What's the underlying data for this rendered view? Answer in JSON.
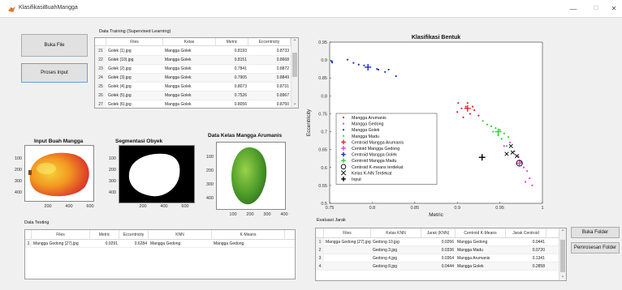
{
  "window": {
    "title": "KlasifikasiBuahMangga",
    "minimize": "—",
    "maximize": "☐",
    "close": "✕"
  },
  "buttons": {
    "buka_file": "Buka File",
    "proses_input": "Proses Input",
    "buka_folder": "Buka Folder",
    "pemrosesan_folder": "Pemrosesan Folder"
  },
  "training": {
    "label": "Data Training (Supervised Learning)",
    "headers": [
      "",
      "Files",
      "Kelas",
      "Metric",
      "Eccentricity"
    ],
    "rows": [
      [
        "21",
        "Golek  (1).jpg",
        "Mangga Golek",
        "0.8193",
        "0.8733"
      ],
      [
        "22",
        "Golek  (10).jpg",
        "Mangga Golek",
        "0.8151",
        "0.8668"
      ],
      [
        "23",
        "Golek  (2).jpg",
        "Mangga Golek",
        "0.7841",
        "0.8872"
      ],
      [
        "24",
        "Golek  (3).jpg",
        "Mangga Golek",
        "0.7905",
        "0.8849"
      ],
      [
        "25",
        "Golek  (4).jpg",
        "Mangga Golek",
        "0.8073",
        "0.8731"
      ],
      [
        "26",
        "Golek  (5).jpg",
        "Mangga Golek",
        "0.7526",
        "0.8967"
      ],
      [
        "27",
        "Golek  (6).jpg",
        "Mangga Golek",
        "0.8056",
        "0.8750"
      ]
    ]
  },
  "images": {
    "input_title": "Input Buah Mangga",
    "seg_title": "Segmentasi Obyek",
    "class_title": "Data Kelas Mangga Arumanis",
    "input_yticks": [
      "100",
      "200",
      "300",
      "400"
    ],
    "input_xticks": [
      "200",
      "400",
      "600"
    ],
    "seg_yticks": [
      "100",
      "200",
      "300",
      "400"
    ],
    "seg_xticks": [
      "200",
      "400",
      "600"
    ],
    "class_yticks": [
      "100",
      "200",
      "300",
      "400"
    ],
    "class_xticks": [
      "100",
      "200",
      "300",
      "400"
    ]
  },
  "testing": {
    "label": "Data Testing",
    "headers": [
      "",
      "Files",
      "Metric",
      "Eccentricity",
      "KNN",
      "K-Means"
    ],
    "rows": [
      [
        "1",
        "Mangga Gedong (27).jpg",
        "0.9291",
        "0.6284",
        "Mangga Gedong",
        "Mangga Gedong"
      ]
    ]
  },
  "evaluasi": {
    "label": "Evaluasi Jarak",
    "headers": [
      "",
      "Files",
      "Kelas KNN",
      "Jarak (KNN)",
      "Centroid K-Means",
      "Jarak Centroid"
    ],
    "rows": [
      [
        "1",
        "Mangga Gedong (27).jpg",
        "Gedong 10.jpg",
        "0.0266",
        "Mangga Gedong",
        "0.0441"
      ],
      [
        "2",
        "",
        "Gedong 3.jpg",
        "0.0336",
        "Mangga Madu",
        "0.0720"
      ],
      [
        "3",
        "",
        "Gedong 4.jpg",
        "0.0364",
        "Mangga Arumanis",
        "0.1341"
      ],
      [
        "4",
        "",
        "Gedong 8.jpg",
        "0.0444",
        "Mangga Golek",
        "0.2858"
      ]
    ]
  },
  "chart_data": {
    "type": "scatter",
    "title": "Klasifikasi Bentuk",
    "xlabel": "Metric",
    "ylabel": "Eccentricity",
    "xlim": [
      0.75,
      1.0
    ],
    "ylim": [
      0.5,
      0.95
    ],
    "xticks": [
      "0.75",
      "0.8",
      "0.85",
      "0.9",
      "0.95",
      "1"
    ],
    "yticks": [
      "0.5",
      "0.55",
      "0.6",
      "0.65",
      "0.7",
      "0.75",
      "0.8",
      "0.85",
      "0.9",
      "0.95"
    ],
    "legend_position": "left",
    "series": [
      {
        "name": "Mangga Arumanis",
        "color": "#e8232a",
        "marker": "dot",
        "points": [
          [
            0.901,
            0.78
          ],
          [
            0.905,
            0.765
          ],
          [
            0.91,
            0.77
          ],
          [
            0.915,
            0.75
          ],
          [
            0.92,
            0.76
          ],
          [
            0.925,
            0.745
          ],
          [
            0.9,
            0.755
          ],
          [
            0.912,
            0.78
          ],
          [
            0.918,
            0.77
          ],
          [
            0.907,
            0.74
          ]
        ]
      },
      {
        "name": "Mangga Gedong",
        "color": "#e83ee0",
        "marker": "dot",
        "points": [
          [
            0.955,
            0.66
          ],
          [
            0.962,
            0.67
          ],
          [
            0.967,
            0.645
          ],
          [
            0.972,
            0.63
          ],
          [
            0.975,
            0.615
          ],
          [
            0.978,
            0.6
          ],
          [
            0.982,
            0.59
          ],
          [
            0.985,
            0.57
          ],
          [
            0.98,
            0.56
          ],
          [
            0.988,
            0.55
          ]
        ]
      },
      {
        "name": "Mangga Golek",
        "color": "#1a2ad6",
        "marker": "dot",
        "points": [
          [
            0.752,
            0.897
          ],
          [
            0.753,
            0.893
          ],
          [
            0.7526,
            0.8967
          ],
          [
            0.7841,
            0.8872
          ],
          [
            0.7905,
            0.8849
          ],
          [
            0.8073,
            0.8731
          ],
          [
            0.8056,
            0.875
          ],
          [
            0.8151,
            0.8668
          ],
          [
            0.8193,
            0.8733
          ],
          [
            0.828,
            0.855
          ],
          [
            0.771,
            0.901
          ],
          [
            0.778,
            0.892
          ]
        ]
      },
      {
        "name": "Mangga Madu",
        "color": "#2fd12f",
        "marker": "dot",
        "points": [
          [
            0.93,
            0.73
          ],
          [
            0.935,
            0.72
          ],
          [
            0.94,
            0.715
          ],
          [
            0.945,
            0.71
          ],
          [
            0.95,
            0.705
          ],
          [
            0.948,
            0.69
          ],
          [
            0.955,
            0.695
          ],
          [
            0.96,
            0.685
          ],
          [
            0.942,
            0.7
          ],
          [
            0.952,
            0.68
          ],
          [
            0.958,
            0.66
          ]
        ]
      },
      {
        "name": "Centroid Mangga Arumanis",
        "color": "#e8232a",
        "marker": "plus",
        "points": [
          [
            0.912,
            0.765
          ]
        ]
      },
      {
        "name": "Centoid Mangga Gedong",
        "color": "#e83ee0",
        "marker": "plus",
        "points": [
          [
            0.973,
            0.612
          ]
        ]
      },
      {
        "name": "Centroid Mangga Golek",
        "color": "#1a2ad6",
        "marker": "plus",
        "points": [
          [
            0.795,
            0.88
          ]
        ]
      },
      {
        "name": "Centroid Mangga Madu",
        "color": "#2fd12f",
        "marker": "plus",
        "points": [
          [
            0.948,
            0.7
          ]
        ]
      },
      {
        "name": "Centroid K-means terdekat",
        "color": "#000000",
        "marker": "circle",
        "points": [
          [
            0.973,
            0.612
          ]
        ]
      },
      {
        "name": "Kelas K-NN Terdekat",
        "color": "#000000",
        "marker": "x",
        "points": [
          [
            0.958,
            0.638
          ],
          [
            0.963,
            0.66
          ],
          [
            0.965,
            0.642
          ],
          [
            0.97,
            0.632
          ]
        ]
      },
      {
        "name": "Input",
        "color": "#000000",
        "marker": "plus",
        "points": [
          [
            0.9291,
            0.6284
          ]
        ]
      }
    ]
  }
}
